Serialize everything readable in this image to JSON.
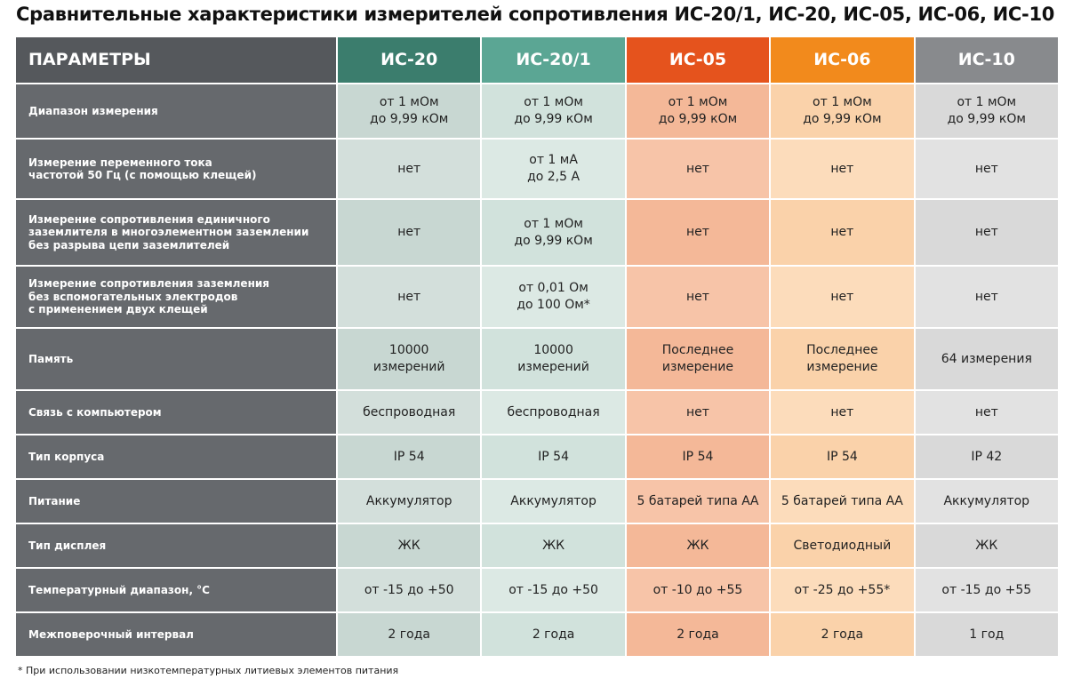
{
  "title": "Сравнительные характеристики измерителей сопротивления ИС-20/1, ИС-20, ИС-05, ИС-06, ИС-10",
  "table": {
    "header": [
      "ПАРАМЕТРЫ",
      "ИС-20",
      "ИС-20/1",
      "ИС-05",
      "ИС-06",
      "ИС-10"
    ],
    "rows": [
      [
        "Диапазон измерения",
        "от 1 мОм\nдо 9,99 кОм",
        "от 1 мОм\nдо 9,99 кОм",
        "от 1 мОм\nдо 9,99 кОм",
        "от 1 мОм\nдо 9,99 кОм",
        "от 1 мОм\nдо 9,99 кОм"
      ],
      [
        "Измерение переменного тока\nчастотой 50 Гц (с помощью клещей)",
        "нет",
        "от 1 мА\nдо 2,5 А",
        "нет",
        "нет",
        "нет"
      ],
      [
        "Измерение сопротивления единичного\nзаземлителя в многоэлементном заземлении\nбез разрыва цепи заземлителей",
        "нет",
        "от 1 мОм\nдо 9,99 кОм",
        "нет",
        "нет",
        "нет"
      ],
      [
        "Измерение сопротивления заземления\nбез вспомогательных электродов\nс применением двух клещей",
        "нет",
        "от 0,01 Ом\nдо 100 Ом*",
        "нет",
        "нет",
        "нет"
      ],
      [
        "Память",
        "10000\nизмерений",
        "10000\nизмерений",
        "Последнее\nизмерение",
        "Последнее\nизмерение",
        "64 измерения"
      ],
      [
        "Связь с компьютером",
        "беспроводная",
        "беспроводная",
        "нет",
        "нет",
        "нет"
      ],
      [
        "Тип корпуса",
        "IP 54",
        "IP 54",
        "IP 54",
        "IP 54",
        "IP 42"
      ],
      [
        "Питание",
        "Аккумулятор",
        "Аккумулятор",
        "5 батарей типа АА",
        "5 батарей типа АА",
        "Аккумулятор"
      ],
      [
        "Тип дисплея",
        "ЖК",
        "ЖК",
        "ЖК",
        "Светодиодный",
        "ЖК"
      ],
      [
        "Температурный диапазон, °C",
        "от -15 до +50",
        "от -15 до +50",
        "от -10 до +55",
        "от -25 до +55*",
        "от -15 до +55"
      ],
      [
        "Межповерочный интервал",
        "2 года",
        "2 года",
        "2 года",
        "2 года",
        "1 год"
      ]
    ]
  },
  "footnote": "* При использовании низкотемпературных литиевых элементов питания"
}
